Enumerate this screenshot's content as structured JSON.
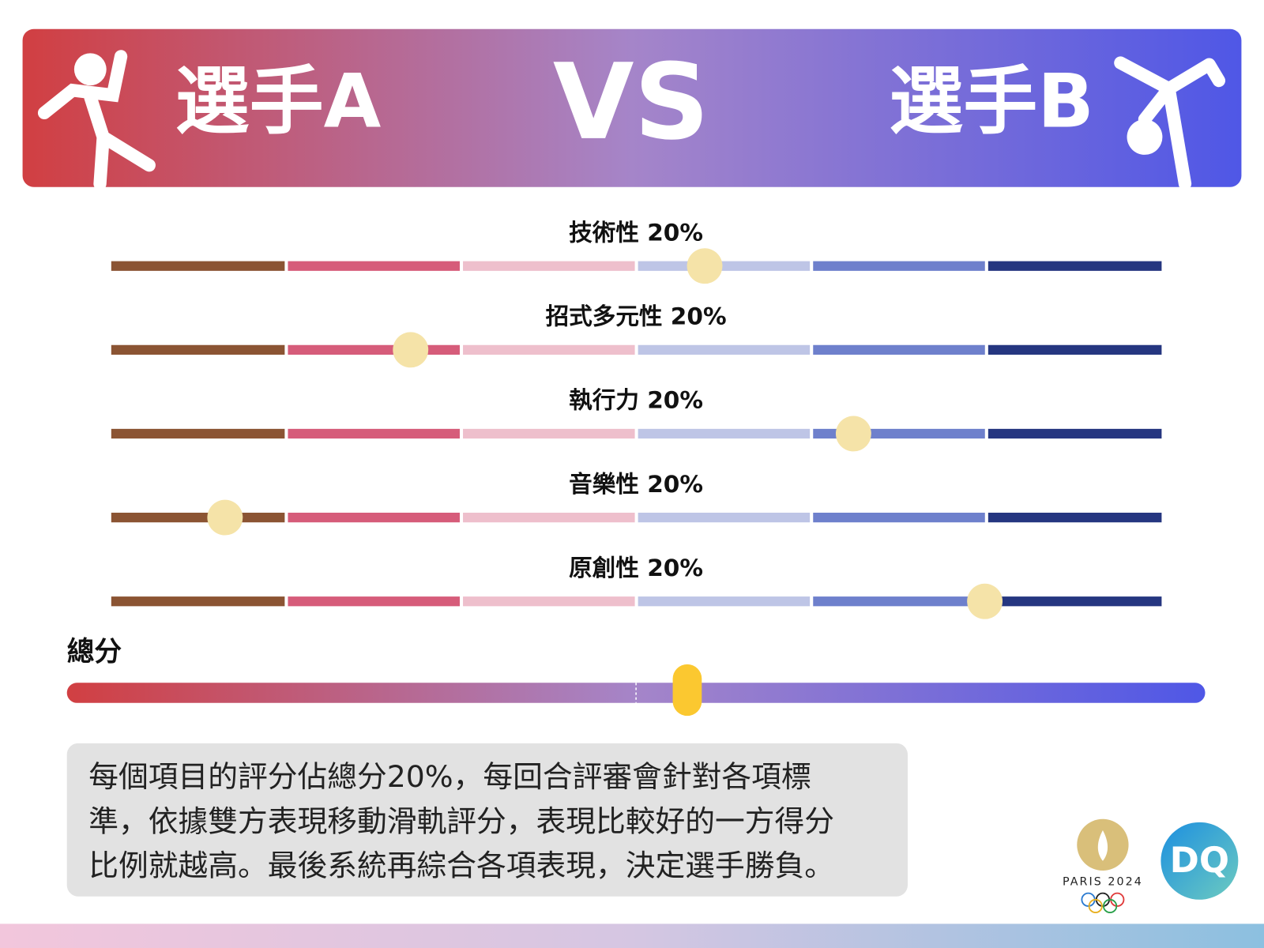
{
  "header": {
    "player_a": "選手A",
    "vs": "VS",
    "player_b": "選手B"
  },
  "segment_colors": [
    "#8b5433",
    "#d65c7a",
    "#eebfcc",
    "#bec5e6",
    "#6e80cc",
    "#253680"
  ],
  "criteria": [
    {
      "label": "技術性  20%",
      "knob": 3.39
    },
    {
      "label": "招式多元性 20%",
      "knob": 1.71
    },
    {
      "label": "執行力  20%",
      "knob": 4.24
    },
    {
      "label": "音樂性  20%",
      "knob": 0.65
    },
    {
      "label": "原創性  20%",
      "knob": 4.99
    }
  ],
  "total": {
    "label": "總分",
    "knob": 0.545
  },
  "description": {
    "lines": [
      "每個項目的評分佔總分20%，每回合評審會針對各項標",
      "準，依據雙方表現移動滑軌評分，表現比較好的一方得分",
      "比例就越高。最後系統再綜合各項表現，決定選手勝負。"
    ]
  },
  "logos": {
    "paris": "PARIS 2024",
    "dq": "DQ"
  }
}
